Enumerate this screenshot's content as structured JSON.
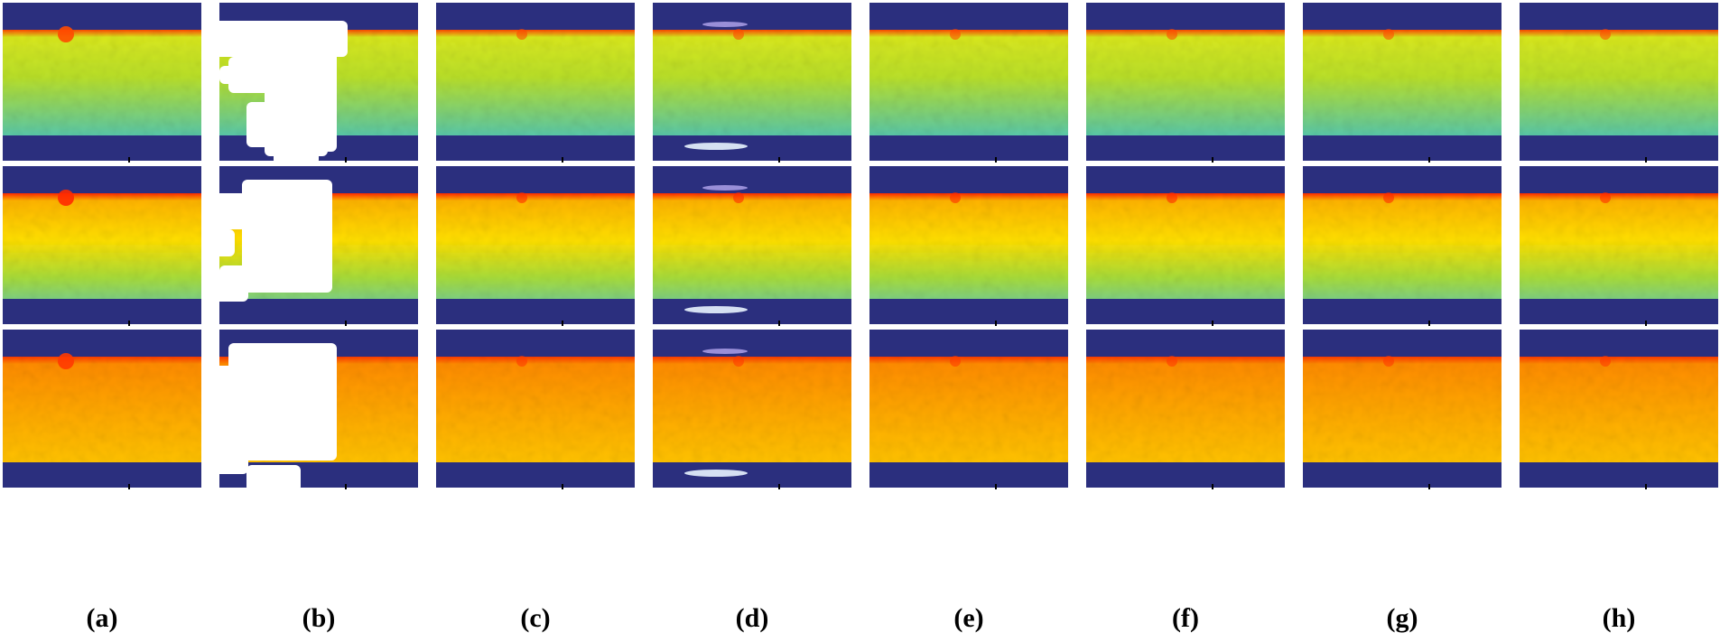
{
  "figure": {
    "columns": [
      {
        "label": "(a)",
        "variant": "ground-truth"
      },
      {
        "label": "(b)",
        "variant": "masked"
      },
      {
        "label": "(c)",
        "variant": "reconstruction"
      },
      {
        "label": "(d)",
        "variant": "reconstruction-artifact"
      },
      {
        "label": "(e)",
        "variant": "reconstruction"
      },
      {
        "label": "(f)",
        "variant": "reconstruction"
      },
      {
        "label": "(g)",
        "variant": "reconstruction"
      },
      {
        "label": "(h)",
        "variant": "reconstruction"
      }
    ],
    "rows": [
      {
        "palette": "green-yellow",
        "hot_top": "#ff4a00",
        "upper": "#d9e81e",
        "mid": "#b9e02a",
        "lower": "#7cd07a",
        "bottom": "#59c8a8"
      },
      {
        "palette": "orange-yellow-green",
        "hot_top": "#ff2a00",
        "upper": "#ffb400",
        "mid": "#ffe000",
        "lower": "#a8dd3a",
        "bottom": "#7fd080"
      },
      {
        "palette": "orange-red",
        "hot_top": "#ff3a00",
        "upper": "#ff8c00",
        "mid": "#ffa400",
        "lower": "#ffb800",
        "bottom": "#ffc200"
      }
    ],
    "colors": {
      "band": "#2b2f7e",
      "band_dark": "#22246a",
      "mask": "#ffffff",
      "tick": "#000000"
    }
  }
}
